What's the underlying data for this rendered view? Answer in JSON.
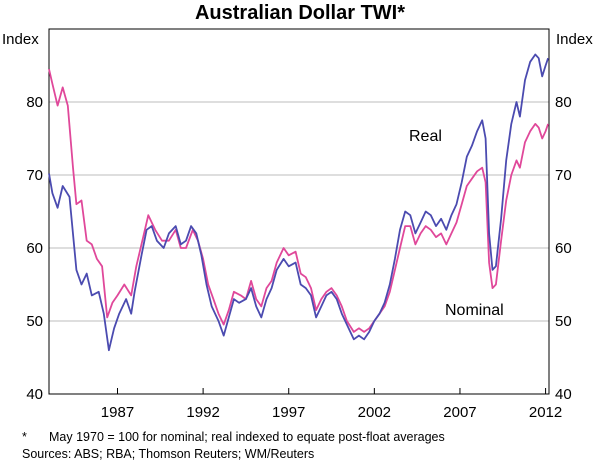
{
  "chart_data": {
    "type": "line",
    "title": "Australian Dollar TWI*",
    "ylabel_left": "Index",
    "ylabel_right": "Index",
    "ylim": [
      40,
      90
    ],
    "yticks": [
      40,
      50,
      60,
      70,
      80
    ],
    "xlim": [
      1983.0,
      2012.2
    ],
    "xticks": [
      {
        "label": "1987",
        "value": 1987.0
      },
      {
        "label": "1992",
        "value": 1992.0
      },
      {
        "label": "1997",
        "value": 1997.0
      },
      {
        "label": "2002",
        "value": 2002.0
      },
      {
        "label": "2007",
        "value": 2007.0
      },
      {
        "label": "2012",
        "value": 2012.0
      }
    ],
    "series": [
      {
        "name": "Real",
        "label": "Real",
        "color": "#4b4bb0",
        "points": [
          [
            1983.0,
            70.2
          ],
          [
            1983.2,
            67.5
          ],
          [
            1983.5,
            65.5
          ],
          [
            1983.8,
            68.5
          ],
          [
            1984.2,
            67.0
          ],
          [
            1984.6,
            57.0
          ],
          [
            1984.9,
            55.0
          ],
          [
            1985.2,
            56.5
          ],
          [
            1985.5,
            53.5
          ],
          [
            1985.9,
            54.0
          ],
          [
            1986.2,
            51.0
          ],
          [
            1986.5,
            46.0
          ],
          [
            1986.8,
            49.0
          ],
          [
            1987.1,
            51.0
          ],
          [
            1987.5,
            53.0
          ],
          [
            1987.8,
            51.0
          ],
          [
            1988.0,
            54.0
          ],
          [
            1988.4,
            59.0
          ],
          [
            1988.7,
            62.5
          ],
          [
            1989.0,
            63.0
          ],
          [
            1989.3,
            61.0
          ],
          [
            1989.7,
            60.0
          ],
          [
            1990.0,
            62.0
          ],
          [
            1990.4,
            63.0
          ],
          [
            1990.7,
            60.5
          ],
          [
            1991.0,
            61.0
          ],
          [
            1991.3,
            63.0
          ],
          [
            1991.6,
            62.0
          ],
          [
            1991.9,
            59.0
          ],
          [
            1992.2,
            55.0
          ],
          [
            1992.5,
            52.0
          ],
          [
            1992.9,
            50.0
          ],
          [
            1993.2,
            48.0
          ],
          [
            1993.5,
            50.5
          ],
          [
            1993.8,
            53.0
          ],
          [
            1994.1,
            52.5
          ],
          [
            1994.5,
            53.0
          ],
          [
            1994.8,
            54.5
          ],
          [
            1995.1,
            52.0
          ],
          [
            1995.4,
            50.5
          ],
          [
            1995.7,
            53.0
          ],
          [
            1996.0,
            54.5
          ],
          [
            1996.3,
            57.0
          ],
          [
            1996.7,
            58.5
          ],
          [
            1997.0,
            57.5
          ],
          [
            1997.4,
            58.0
          ],
          [
            1997.7,
            55.0
          ],
          [
            1998.0,
            54.5
          ],
          [
            1998.3,
            53.5
          ],
          [
            1998.6,
            50.5
          ],
          [
            1998.9,
            52.0
          ],
          [
            1999.2,
            53.5
          ],
          [
            1999.5,
            54.0
          ],
          [
            1999.8,
            53.0
          ],
          [
            2000.1,
            51.0
          ],
          [
            2000.4,
            49.5
          ],
          [
            2000.8,
            47.5
          ],
          [
            2001.1,
            48.0
          ],
          [
            2001.4,
            47.5
          ],
          [
            2001.7,
            48.5
          ],
          [
            2002.0,
            50.0
          ],
          [
            2002.3,
            51.0
          ],
          [
            2002.6,
            52.5
          ],
          [
            2002.9,
            55.0
          ],
          [
            2003.2,
            58.5
          ],
          [
            2003.5,
            62.5
          ],
          [
            2003.8,
            65.0
          ],
          [
            2004.1,
            64.5
          ],
          [
            2004.4,
            62.0
          ],
          [
            2004.7,
            63.5
          ],
          [
            2005.0,
            65.0
          ],
          [
            2005.3,
            64.5
          ],
          [
            2005.6,
            63.0
          ],
          [
            2005.9,
            64.0
          ],
          [
            2006.2,
            62.5
          ],
          [
            2006.5,
            64.5
          ],
          [
            2006.8,
            66.0
          ],
          [
            2007.1,
            69.0
          ],
          [
            2007.4,
            72.5
          ],
          [
            2007.7,
            74.0
          ],
          [
            2008.0,
            76.0
          ],
          [
            2008.3,
            77.5
          ],
          [
            2008.5,
            75.0
          ],
          [
            2008.7,
            62.0
          ],
          [
            2008.9,
            57.0
          ],
          [
            2009.1,
            57.5
          ],
          [
            2009.4,
            64.0
          ],
          [
            2009.7,
            72.0
          ],
          [
            2010.0,
            77.0
          ],
          [
            2010.3,
            80.0
          ],
          [
            2010.5,
            78.0
          ],
          [
            2010.8,
            83.0
          ],
          [
            2011.1,
            85.5
          ],
          [
            2011.4,
            86.5
          ],
          [
            2011.6,
            86.0
          ],
          [
            2011.8,
            83.5
          ],
          [
            2012.0,
            85.0
          ],
          [
            2012.15,
            86.0
          ]
        ]
      },
      {
        "name": "Nominal",
        "label": "Nominal",
        "color": "#e0489a",
        "points": [
          [
            1983.0,
            84.5
          ],
          [
            1983.2,
            82.5
          ],
          [
            1983.5,
            79.5
          ],
          [
            1983.8,
            82.0
          ],
          [
            1984.1,
            79.5
          ],
          [
            1984.4,
            71.0
          ],
          [
            1984.6,
            66.0
          ],
          [
            1984.9,
            66.5
          ],
          [
            1985.2,
            61.0
          ],
          [
            1985.5,
            60.5
          ],
          [
            1985.8,
            58.5
          ],
          [
            1986.1,
            57.5
          ],
          [
            1986.4,
            50.5
          ],
          [
            1986.7,
            52.5
          ],
          [
            1987.0,
            53.5
          ],
          [
            1987.4,
            55.0
          ],
          [
            1987.8,
            53.5
          ],
          [
            1988.1,
            57.5
          ],
          [
            1988.5,
            61.5
          ],
          [
            1988.8,
            64.5
          ],
          [
            1989.2,
            62.5
          ],
          [
            1989.6,
            61.0
          ],
          [
            1990.0,
            61.0
          ],
          [
            1990.4,
            62.5
          ],
          [
            1990.7,
            60.0
          ],
          [
            1991.0,
            60.0
          ],
          [
            1991.4,
            62.5
          ],
          [
            1991.7,
            61.0
          ],
          [
            1992.0,
            58.5
          ],
          [
            1992.3,
            55.0
          ],
          [
            1992.6,
            53.0
          ],
          [
            1992.9,
            51.0
          ],
          [
            1993.2,
            49.5
          ],
          [
            1993.5,
            51.5
          ],
          [
            1993.8,
            54.0
          ],
          [
            1994.2,
            53.5
          ],
          [
            1994.5,
            53.0
          ],
          [
            1994.8,
            55.5
          ],
          [
            1995.1,
            53.0
          ],
          [
            1995.4,
            52.0
          ],
          [
            1995.7,
            54.5
          ],
          [
            1996.0,
            55.5
          ],
          [
            1996.3,
            58.0
          ],
          [
            1996.7,
            60.0
          ],
          [
            1997.0,
            59.0
          ],
          [
            1997.4,
            59.5
          ],
          [
            1997.7,
            56.5
          ],
          [
            1998.0,
            56.0
          ],
          [
            1998.3,
            54.5
          ],
          [
            1998.6,
            51.5
          ],
          [
            1998.9,
            53.0
          ],
          [
            1999.2,
            54.0
          ],
          [
            1999.5,
            54.5
          ],
          [
            1999.8,
            53.5
          ],
          [
            2000.1,
            52.0
          ],
          [
            2000.4,
            50.0
          ],
          [
            2000.8,
            48.5
          ],
          [
            2001.1,
            49.0
          ],
          [
            2001.4,
            48.5
          ],
          [
            2001.7,
            49.0
          ],
          [
            2002.0,
            50.0
          ],
          [
            2002.3,
            51.0
          ],
          [
            2002.6,
            52.0
          ],
          [
            2002.9,
            54.0
          ],
          [
            2003.2,
            57.0
          ],
          [
            2003.5,
            60.0
          ],
          [
            2003.8,
            63.0
          ],
          [
            2004.1,
            63.0
          ],
          [
            2004.4,
            60.5
          ],
          [
            2004.7,
            62.0
          ],
          [
            2005.0,
            63.0
          ],
          [
            2005.3,
            62.5
          ],
          [
            2005.6,
            61.5
          ],
          [
            2005.9,
            62.0
          ],
          [
            2006.2,
            60.5
          ],
          [
            2006.5,
            62.0
          ],
          [
            2006.8,
            63.5
          ],
          [
            2007.1,
            66.0
          ],
          [
            2007.4,
            68.5
          ],
          [
            2007.7,
            69.5
          ],
          [
            2008.0,
            70.5
          ],
          [
            2008.3,
            71.0
          ],
          [
            2008.5,
            69.0
          ],
          [
            2008.7,
            58.0
          ],
          [
            2008.9,
            54.5
          ],
          [
            2009.1,
            55.0
          ],
          [
            2009.4,
            61.0
          ],
          [
            2009.7,
            66.5
          ],
          [
            2010.0,
            70.0
          ],
          [
            2010.3,
            72.0
          ],
          [
            2010.5,
            71.0
          ],
          [
            2010.8,
            74.5
          ],
          [
            2011.1,
            76.0
          ],
          [
            2011.4,
            77.0
          ],
          [
            2011.6,
            76.5
          ],
          [
            2011.8,
            75.0
          ],
          [
            2012.0,
            76.0
          ],
          [
            2012.15,
            77.0
          ]
        ]
      }
    ]
  },
  "footnote": {
    "marker": "*",
    "text": "May 1970 = 100 for nominal; real indexed to equate post-float averages"
  },
  "sources": "Sources: ABS; RBA; Thomson Reuters; WM/Reuters"
}
